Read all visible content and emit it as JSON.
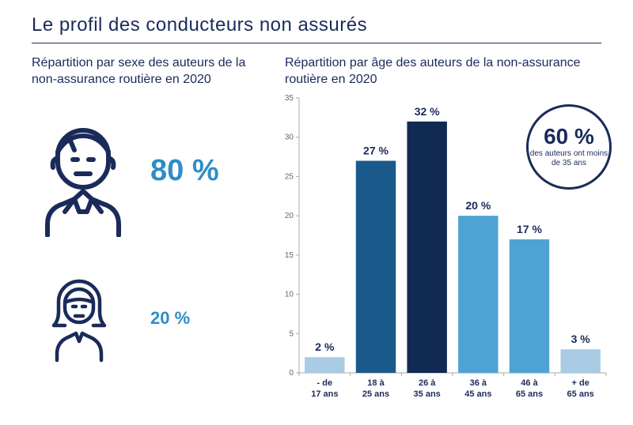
{
  "title": "Le profil des conducteurs non assurés",
  "colors": {
    "navy": "#1a2b5a",
    "blue": "#2e8dc7",
    "light_blue": "#4fa3d4",
    "pale_blue": "#a9cbe4",
    "dark_navy_bar": "#102a52",
    "axis": "#aaaaaa",
    "tick_text": "#666666",
    "bg": "#ffffff"
  },
  "left": {
    "subtitle": "Répartition par sexe des auteurs de la non-assurance routière en 2020",
    "male": {
      "pct_label": "80 %",
      "value": 80
    },
    "female": {
      "pct_label": "20 %",
      "value": 20
    }
  },
  "right": {
    "subtitle": "Répartition par âge des auteurs de la non-assurance routière en 2020",
    "chart": {
      "type": "bar",
      "ylim": [
        0,
        35
      ],
      "ytick_step": 5,
      "yticks": [
        0,
        5,
        10,
        15,
        20,
        25,
        30,
        35
      ],
      "axis_color": "#aaaaaa",
      "bar_width_ratio": 0.78,
      "label_fontsize": 14,
      "tick_fontsize": 10,
      "categories": [
        {
          "line1": "- de",
          "line2": "17 ans"
        },
        {
          "line1": "18 à",
          "line2": "25 ans"
        },
        {
          "line1": "26 à",
          "line2": "35 ans"
        },
        {
          "line1": "36 à",
          "line2": "45 ans"
        },
        {
          "line1": "46 à",
          "line2": "65 ans"
        },
        {
          "line1": "+ de",
          "line2": "65 ans"
        }
      ],
      "values": [
        2,
        27,
        32,
        20,
        17,
        3
      ],
      "value_labels": [
        "2 %",
        "27 %",
        "32 %",
        "20 %",
        "17 %",
        "3 %"
      ],
      "bar_colors": [
        "#a9cbe4",
        "#1a5a8a",
        "#102a52",
        "#4fa3d4",
        "#4fa3d4",
        "#a9cbe4"
      ]
    },
    "badge": {
      "pct_label": "60 %",
      "text": "des auteurs ont moins de 35 ans",
      "border_color": "#1a2b5a"
    }
  }
}
